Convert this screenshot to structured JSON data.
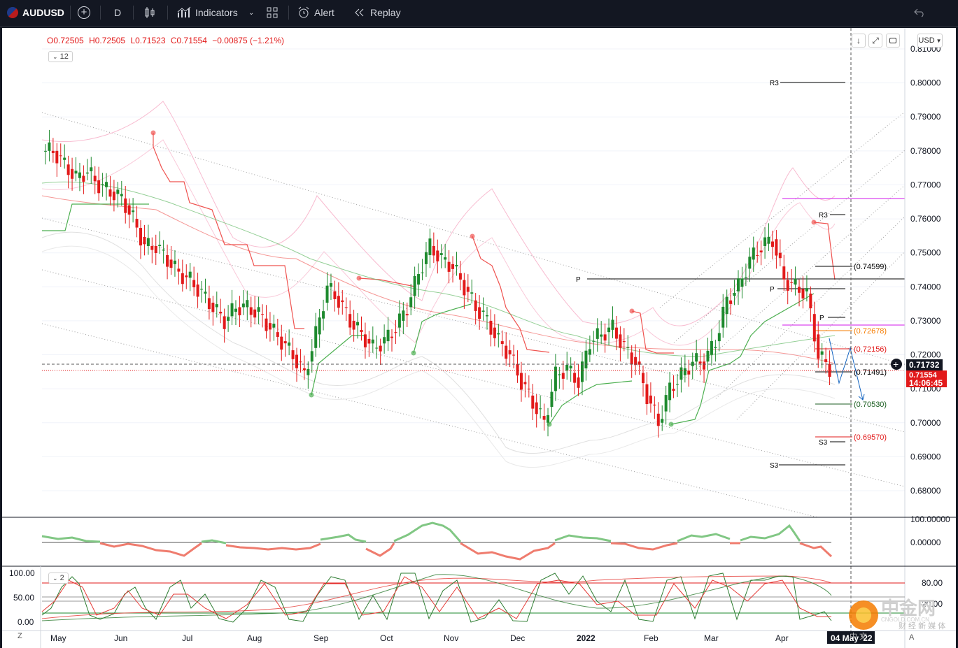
{
  "toolbar": {
    "symbol": "AUDUSD",
    "interval": "D",
    "indicators_label": "Indicators",
    "alert_label": "Alert",
    "replay_label": "Replay"
  },
  "legend": {
    "open": "O0.72505",
    "high": "H0.72505",
    "low": "L0.71523",
    "close": "C0.71554",
    "change": "−0.00875 (−1.21%)",
    "collapsed_count": "12",
    "panel3_count": "2"
  },
  "currency_button": "USD",
  "price_axis": [
    "0.81000",
    "0.80000",
    "0.79000",
    "0.78000",
    "0.77000",
    "0.76000",
    "0.75000",
    "0.74000",
    "0.73000",
    "0.72000",
    "0.71000",
    "0.70000",
    "0.69000",
    "0.68000"
  ],
  "price_tags": {
    "current": "0.71732",
    "last": "0.71554",
    "countdown": "14:06:45"
  },
  "pivot_labels": [
    "R3",
    "P",
    "R3",
    "P",
    "P",
    "S3",
    "S3"
  ],
  "level_labels": [
    "(0.74599)",
    "(0.72678)",
    "(0.72156)",
    "(0.71491)",
    "(0.70530)",
    "(0.69570)"
  ],
  "osc1_axis": [
    "100.00000",
    "0.00000"
  ],
  "osc2_axis_left": [
    "100.00",
    "50.00",
    "0.00"
  ],
  "osc2_axis_right": [
    "80.00",
    "20.00"
  ],
  "time_axis": [
    "May",
    "Jun",
    "Jul",
    "Aug",
    "Sep",
    "Oct",
    "Nov",
    "Dec",
    "2022",
    "Feb",
    "Mar",
    "Apr"
  ],
  "time_cursor": "04 May '22",
  "bottom_left_button": "Z",
  "bottom_right_button": "A",
  "watermark": {
    "cn": "中金网",
    "sub": "CNGOLD.COM.CN",
    "small": "财 经 新 媒 体",
    "small2": "中 文"
  },
  "colors": {
    "up": "#26a69a",
    "bull_candle": "#1e8a2e",
    "bear_candle": "#e21a1a",
    "band_red": "#f28b82",
    "band_green": "#4caf50",
    "magenta": "#d946ef",
    "orange": "#f57c00"
  },
  "chart_data": {
    "type": "candlestick",
    "symbol": "AUDUSD",
    "interval": "D",
    "ylim": [
      0.675,
      0.812
    ],
    "x": [
      "May",
      "Jun",
      "Jul",
      "Aug",
      "Sep",
      "Oct",
      "Nov",
      "Dec",
      "2022",
      "Feb",
      "Mar",
      "Apr"
    ],
    "closes": [
      0.78,
      0.776,
      0.772,
      0.774,
      0.77,
      0.768,
      0.766,
      0.76,
      0.752,
      0.752,
      0.748,
      0.744,
      0.742,
      0.738,
      0.734,
      0.73,
      0.734,
      0.734,
      0.732,
      0.728,
      0.724,
      0.72,
      0.714,
      0.726,
      0.74,
      0.736,
      0.73,
      0.726,
      0.722,
      0.724,
      0.728,
      0.734,
      0.744,
      0.752,
      0.748,
      0.746,
      0.74,
      0.734,
      0.73,
      0.724,
      0.72,
      0.712,
      0.706,
      0.7,
      0.714,
      0.716,
      0.712,
      0.724,
      0.726,
      0.728,
      0.722,
      0.718,
      0.708,
      0.7,
      0.71,
      0.714,
      0.718,
      0.718,
      0.724,
      0.736,
      0.74,
      0.748,
      0.752,
      0.754,
      0.742,
      0.74,
      0.738,
      0.72,
      0.716
    ],
    "levels": [
      {
        "label": "(0.74599)",
        "value": 0.74599
      },
      {
        "label": "(0.72678)",
        "value": 0.72678
      },
      {
        "label": "(0.72156)",
        "value": 0.72156
      },
      {
        "label": "(0.71491)",
        "value": 0.71491
      },
      {
        "label": "(0.70530)",
        "value": 0.7053
      },
      {
        "label": "(0.69570)",
        "value": 0.6957
      }
    ],
    "pivots": [
      {
        "label": "R3",
        "value": 0.8
      },
      {
        "label": "P",
        "value": 0.7425
      },
      {
        "label": "S3",
        "value": 0.6875
      },
      {
        "label": "R3",
        "value": 0.761
      },
      {
        "label": "P",
        "value": 0.7395
      },
      {
        "label": "P",
        "value": 0.731
      },
      {
        "label": "S3",
        "value": 0.6945
      }
    ],
    "current_price": 0.71732,
    "last_price": 0.71554
  }
}
